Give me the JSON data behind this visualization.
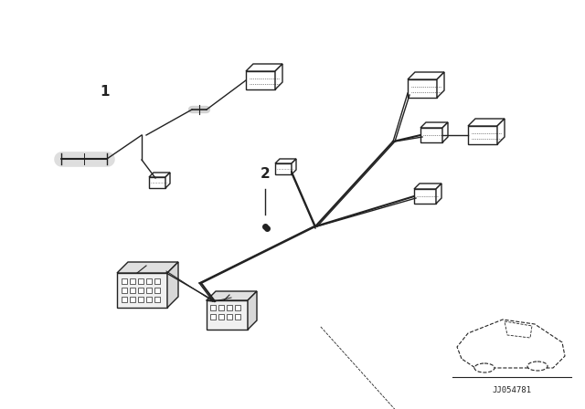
{
  "background_color": "#ffffff",
  "line_color": "#222222",
  "label_1": "1",
  "label_2": "2",
  "diagram_id": "JJ054781",
  "figsize": [
    6.4,
    4.48
  ],
  "dpi": 100
}
